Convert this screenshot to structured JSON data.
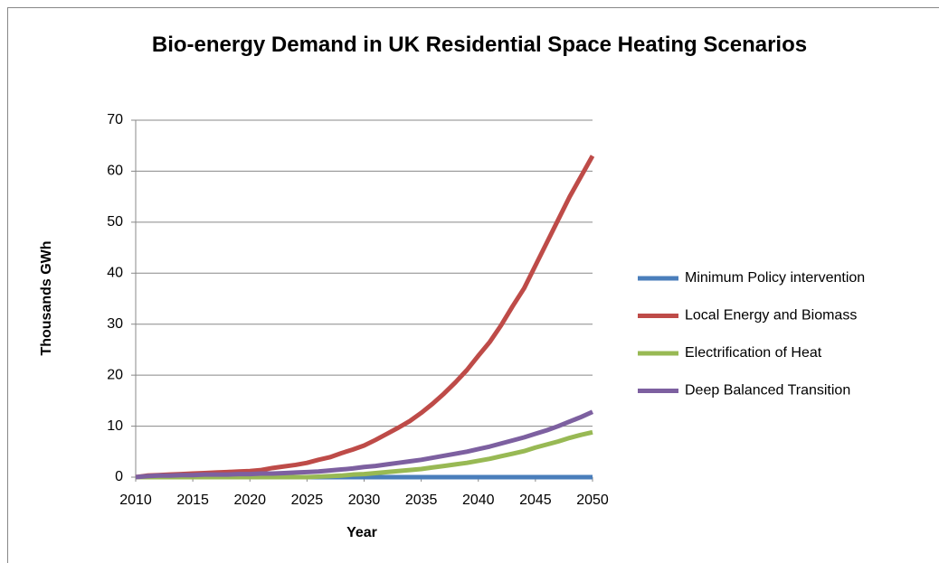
{
  "chart_data": {
    "type": "line",
    "title": "Bio-energy Demand in UK Residential Space Heating Scenarios",
    "x_label": "Year",
    "y_label": "Thousands GWh",
    "x": [
      2010,
      2011,
      2012,
      2013,
      2014,
      2015,
      2016,
      2017,
      2018,
      2019,
      2020,
      2021,
      2022,
      2023,
      2024,
      2025,
      2026,
      2027,
      2028,
      2029,
      2030,
      2031,
      2032,
      2033,
      2034,
      2035,
      2036,
      2037,
      2038,
      2039,
      2040,
      2041,
      2042,
      2043,
      2044,
      2045,
      2046,
      2047,
      2048,
      2049,
      2050
    ],
    "xlim": [
      2010,
      2050
    ],
    "xticks": [
      2010,
      2015,
      2020,
      2025,
      2030,
      2035,
      2040,
      2045,
      2050
    ],
    "ylim": [
      0,
      70
    ],
    "yticks": [
      0,
      10,
      20,
      30,
      40,
      50,
      60,
      70
    ],
    "grid": true,
    "legend": "right",
    "series": [
      {
        "name": "Minimum Policy intervention",
        "color": "#4a7ebb",
        "values": [
          0,
          0,
          0,
          0,
          0,
          0,
          0,
          0,
          0,
          0,
          0,
          0,
          0,
          0,
          0,
          0,
          0,
          0,
          0,
          0,
          0,
          0,
          0,
          0,
          0,
          0,
          0,
          0,
          0,
          0,
          0,
          0,
          0,
          0,
          0,
          0,
          0,
          0,
          0,
          0,
          0
        ]
      },
      {
        "name": "Local Energy and Biomass",
        "color": "#be4b48",
        "values": [
          0,
          0.3,
          0.4,
          0.5,
          0.6,
          0.7,
          0.8,
          0.9,
          1.0,
          1.1,
          1.2,
          1.4,
          1.8,
          2.1,
          2.4,
          2.8,
          3.4,
          3.9,
          4.7,
          5.4,
          6.2,
          7.3,
          8.5,
          9.7,
          11.0,
          12.6,
          14.4,
          16.4,
          18.6,
          21.0,
          23.8,
          26.5,
          29.8,
          33.5,
          37.0,
          41.5,
          46.0,
          50.5,
          55.0,
          59.0,
          63.0
        ]
      },
      {
        "name": "Electrification of Heat",
        "color": "#98b954",
        "values": [
          0,
          0,
          0,
          0,
          0,
          0,
          0,
          0,
          0,
          0,
          0,
          0,
          0,
          0,
          0,
          0,
          0.1,
          0.2,
          0.3,
          0.5,
          0.6,
          0.8,
          1.0,
          1.2,
          1.4,
          1.6,
          1.9,
          2.2,
          2.5,
          2.8,
          3.2,
          3.6,
          4.1,
          4.6,
          5.1,
          5.8,
          6.4,
          7.0,
          7.7,
          8.3,
          8.8
        ]
      },
      {
        "name": "Deep Balanced Transition",
        "color": "#7d60a0",
        "values": [
          0,
          0.2,
          0.3,
          0.3,
          0.4,
          0.4,
          0.5,
          0.5,
          0.5,
          0.6,
          0.6,
          0.7,
          0.7,
          0.8,
          0.9,
          1.0,
          1.1,
          1.3,
          1.5,
          1.7,
          2.0,
          2.2,
          2.5,
          2.8,
          3.1,
          3.4,
          3.8,
          4.2,
          4.6,
          5.0,
          5.5,
          6.0,
          6.6,
          7.2,
          7.8,
          8.5,
          9.2,
          10.0,
          10.9,
          11.8,
          12.8
        ]
      }
    ]
  }
}
